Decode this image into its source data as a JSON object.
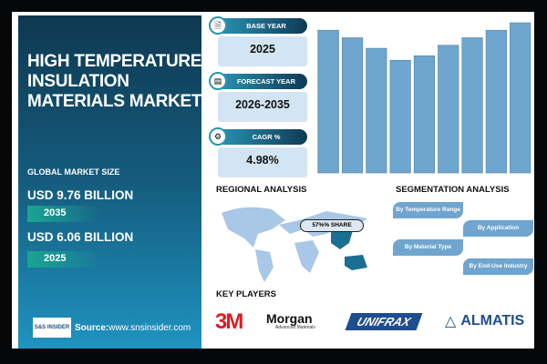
{
  "title": "HIGH TEMPERATURE INSULATION MATERIALS MARKET",
  "title_lines": [
    "HIGH TEMPERATURE",
    "INSULATION",
    "MATERIALS MARKET"
  ],
  "market_size_label": "GLOBAL MARKET SIZE",
  "market": [
    {
      "value": "USD 9.76 BILLION",
      "year": "2035"
    },
    {
      "value": "USD 6.06 BILLION",
      "year": "2025"
    }
  ],
  "source": {
    "label": "Source:",
    "url": "www.snsinsider.com",
    "logo_text": "S&S INSIDER Strategy & Stats"
  },
  "stats": [
    {
      "icon": "document-icon",
      "label": "BASE YEAR",
      "value": "2025"
    },
    {
      "icon": "chart-icon",
      "label": "FORECAST YEAR",
      "value": "2026-2035"
    },
    {
      "icon": "growth-icon",
      "label": "CAGR %",
      "value": "4.98%"
    }
  ],
  "regional": {
    "heading": "REGIONAL ANALYSIS",
    "share": "57%% SHARE"
  },
  "segmentation": {
    "heading": "SEGMENTATION ANALYSIS",
    "items": [
      "By Temperature Range",
      "By Application",
      "By Material Type",
      "By End-Use Industry"
    ]
  },
  "key_players": {
    "heading": "KEY PLAYERS",
    "items": [
      "3M",
      "Morgan",
      "Advanced Materials",
      "UNIFRAX",
      "ALMATIS"
    ]
  },
  "chart_data": {
    "type": "bar",
    "values": [
      95,
      90,
      83,
      75,
      78,
      85,
      90,
      95,
      100
    ],
    "ylim": [
      0,
      100
    ],
    "bar_color": "#6fa6d0",
    "grid": false
  }
}
